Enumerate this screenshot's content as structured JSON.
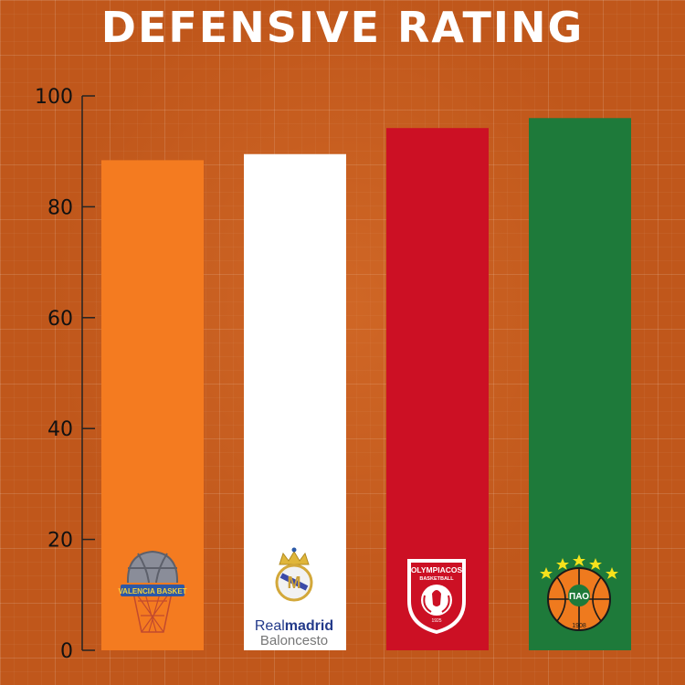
{
  "title": "DEFENSIVE RATING",
  "chart_data": {
    "type": "bar",
    "title": "DEFENSIVE RATING",
    "xlabel": "",
    "ylabel": "",
    "ylim": [
      0,
      100
    ],
    "yticks": [
      0,
      20,
      40,
      60,
      80,
      100
    ],
    "grid": false,
    "categories": [
      "Valencia Basket",
      "Real Madrid Baloncesto",
      "Olympiacos Basketball",
      "Panathinaikos"
    ],
    "values": [
      88.4,
      89.5,
      94.2,
      96.0
    ],
    "colors": [
      "#f47b20",
      "#ffffff",
      "#cc1024",
      "#1e7a3a"
    ]
  },
  "logos": {
    "valencia": {
      "text": "VALENCIA BASKET",
      "icon": "valencia-basket-logo"
    },
    "realmadrid": {
      "line1_a": "Real",
      "line1_b": "madrid",
      "line2": "Baloncesto",
      "icon": "real-madrid-crest"
    },
    "olympiacos": {
      "line1": "OLYMPIACOS",
      "line2": "BASKETBALL",
      "year": "1925",
      "icon": "olympiacos-logo"
    },
    "panathinaikos": {
      "letters": "ΠΑΟ",
      "year": "1908",
      "icon": "panathinaikos-logo"
    }
  }
}
